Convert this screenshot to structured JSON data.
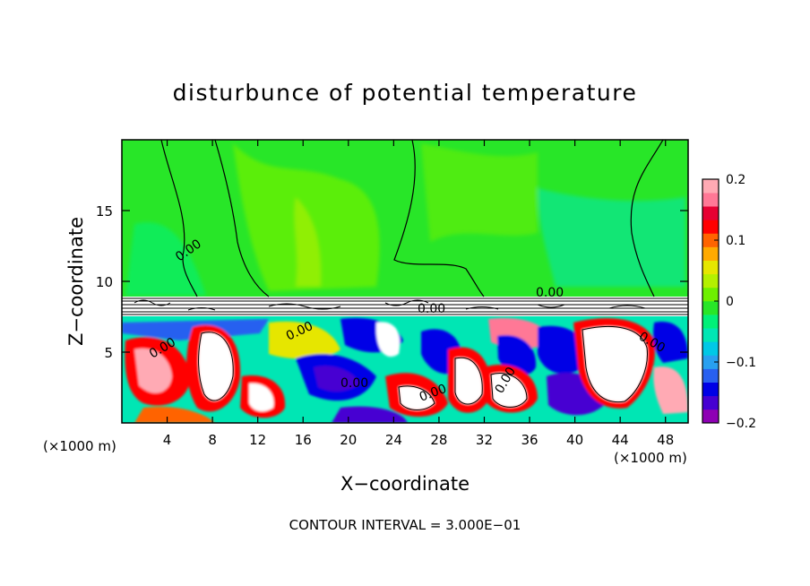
{
  "chart_data": {
    "type": "heatmap",
    "title": "disturbunce of potential temperature",
    "xlabel": "X−coordinate",
    "ylabel": "Z−coordinate",
    "x_unit_left": "(×1000 m)",
    "x_unit_right": "(×1000 m)",
    "footer": "CONTOUR INTERVAL = 3.000E−01",
    "xlim": [
      0,
      50
    ],
    "ylim": [
      0,
      20
    ],
    "x_ticks": [
      4,
      8,
      12,
      16,
      20,
      24,
      28,
      32,
      36,
      40,
      44,
      48
    ],
    "x_tick_labels": [
      "4",
      "8",
      "12",
      "16",
      "20",
      "24",
      "28",
      "32",
      "36",
      "40",
      "44",
      "48"
    ],
    "y_ticks": [
      5,
      10,
      15
    ],
    "y_tick_labels": [
      "5",
      "10",
      "15"
    ],
    "colorbar": {
      "range": [
        -0.2,
        0.2
      ],
      "ticks": [
        0.2,
        0.1,
        0,
        -0.1,
        -0.2
      ],
      "tick_labels": [
        "0.2",
        "0.1",
        "0",
        "−0.1",
        "−0.2"
      ],
      "colors": [
        "#8e00b4",
        "#4600d2",
        "#0000e6",
        "#2860f0",
        "#28a0f0",
        "#00c8e6",
        "#00e6b4",
        "#00f078",
        "#28e628",
        "#6ef000",
        "#b4f000",
        "#e6e600",
        "#ffaa00",
        "#ff6400",
        "#ff0000",
        "#e60032",
        "#ff7896",
        "#ffaab4"
      ]
    },
    "contour_labels": [
      "0.00",
      "0.00",
      "0.00",
      "0.00",
      "0.00",
      "0.00",
      "0.00",
      "0.00",
      "0.00"
    ],
    "regions": {
      "upper": {
        "z_range": [
          9,
          20
        ],
        "description_value": "near 0 (0 to 0.03)"
      },
      "inversion_layer": {
        "z_range": [
          7.5,
          9
        ]
      },
      "lower": {
        "z_range": [
          0,
          7.5
        ]
      }
    }
  }
}
